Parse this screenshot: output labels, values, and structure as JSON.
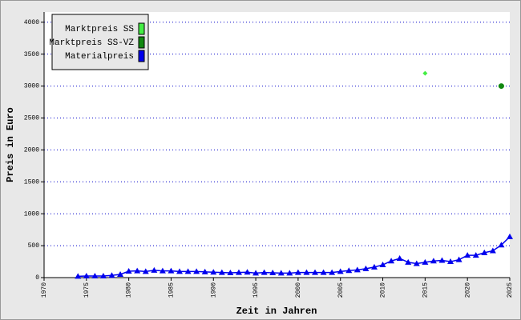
{
  "chart_data": {
    "type": "line",
    "xlabel": "Zeit in Jahren",
    "ylabel": "Preis in Euro",
    "xlim": [
      1970,
      2025
    ],
    "xticks": [
      1970,
      1975,
      1980,
      1985,
      1990,
      1995,
      2000,
      2005,
      2010,
      2015,
      2020,
      2025
    ],
    "ylim": [
      0,
      4160
    ],
    "yticks": [
      0,
      500,
      1000,
      1500,
      2000,
      2500,
      3000,
      3500,
      4000
    ],
    "grid": true,
    "legend": "upper left",
    "series": [
      {
        "name": "Marktpreis SS",
        "color": "#44ee44",
        "marker": "diamond",
        "line": false,
        "x": [
          2015
        ],
        "values": [
          3200
        ]
      },
      {
        "name": "Marktpreis SS-VZ",
        "color": "#118811",
        "marker": "circle",
        "line": false,
        "x": [
          2024
        ],
        "values": [
          3000
        ]
      },
      {
        "name": "Materialpreis",
        "color": "#0000ee",
        "marker": "triangle",
        "line": true,
        "x": [
          1974,
          1975,
          1976,
          1977,
          1978,
          1979,
          1980,
          1981,
          1982,
          1983,
          1984,
          1985,
          1986,
          1987,
          1988,
          1989,
          1990,
          1991,
          1992,
          1993,
          1994,
          1995,
          1996,
          1997,
          1998,
          1999,
          2000,
          2001,
          2002,
          2003,
          2004,
          2005,
          2006,
          2007,
          2008,
          2009,
          2010,
          2011,
          2012,
          2013,
          2014,
          2015,
          2016,
          2017,
          2018,
          2019,
          2020,
          2021,
          2022,
          2023,
          2024,
          2025
        ],
        "values": [
          20,
          25,
          25,
          25,
          35,
          50,
          100,
          105,
          95,
          115,
          105,
          105,
          95,
          95,
          95,
          90,
          85,
          80,
          75,
          80,
          85,
          70,
          80,
          75,
          70,
          70,
          80,
          80,
          80,
          80,
          80,
          95,
          110,
          120,
          140,
          165,
          200,
          260,
          300,
          240,
          220,
          240,
          260,
          270,
          250,
          280,
          350,
          350,
          390,
          420,
          510,
          640
        ]
      }
    ]
  }
}
